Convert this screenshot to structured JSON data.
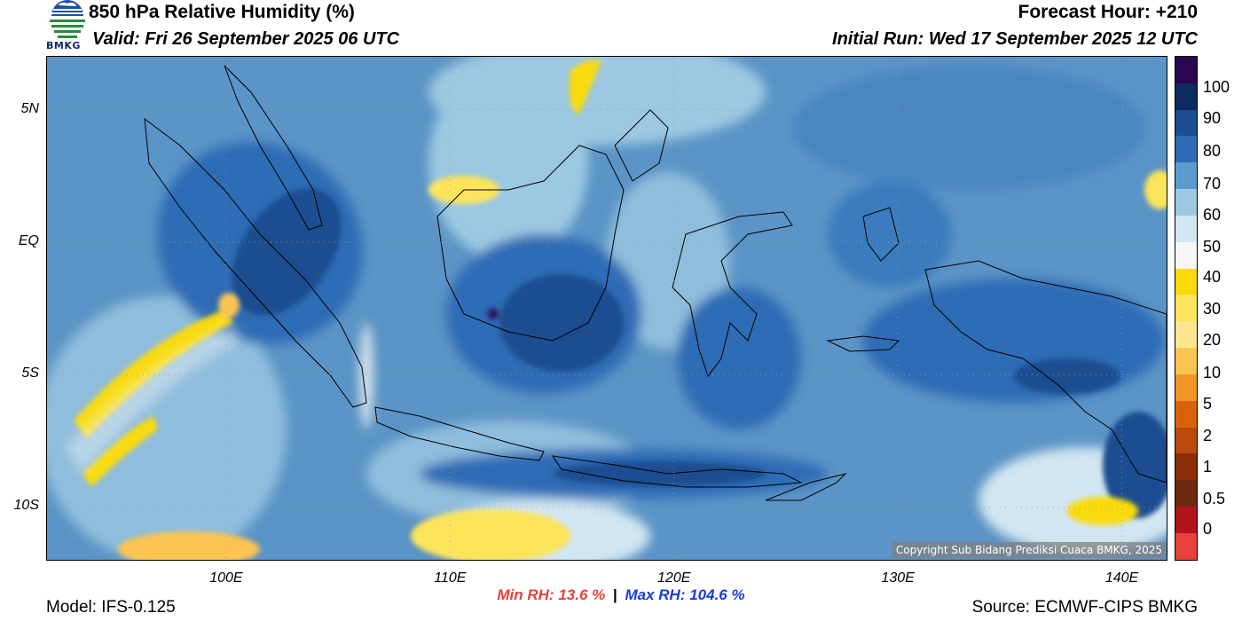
{
  "header": {
    "title": "850 hPa Relative Humidity (%)",
    "valid": "Valid: Fri 26 September 2025 06 UTC",
    "forecast_hour": "Forecast Hour: +210",
    "initial_run": "Initial Run: Wed 17 September 2025 12 UTC"
  },
  "logo": {
    "text": "BMKG",
    "icon": "bmkg-logo-icon"
  },
  "map": {
    "extent": {
      "lon_min": 92,
      "lon_max": 142,
      "lat_min": -12,
      "lat_max": 7
    },
    "lat_ticks": [
      {
        "value": 5,
        "label": "5N"
      },
      {
        "value": 0,
        "label": "EQ"
      },
      {
        "value": -5,
        "label": "5S"
      },
      {
        "value": -10,
        "label": "10S"
      }
    ],
    "lon_ticks": [
      {
        "value": 100,
        "label": "100E"
      },
      {
        "value": 110,
        "label": "110E"
      },
      {
        "value": 120,
        "label": "120E"
      },
      {
        "value": 130,
        "label": "130E"
      },
      {
        "value": 140,
        "label": "140E"
      }
    ],
    "grid": "dotted"
  },
  "colorbar": {
    "segments": [
      {
        "color": "#e8403a"
      },
      {
        "color": "#b0141c"
      },
      {
        "color": "#6e2a10"
      },
      {
        "color": "#8b2f08"
      },
      {
        "color": "#b84a0e"
      },
      {
        "color": "#d9630a"
      },
      {
        "color": "#f39427"
      },
      {
        "color": "#fbc451"
      },
      {
        "color": "#fde592"
      },
      {
        "color": "#fce45a"
      },
      {
        "color": "#f9da0a"
      },
      {
        "color": "#f6f6f6"
      },
      {
        "color": "#d2e6f1"
      },
      {
        "color": "#9cc8e1"
      },
      {
        "color": "#5b9bd0"
      },
      {
        "color": "#2d6cb5"
      },
      {
        "color": "#1b4d90"
      },
      {
        "color": "#0d2b5e"
      },
      {
        "color": "#2a0752"
      }
    ],
    "labels": [
      "100",
      "90",
      "80",
      "70",
      "60",
      "50",
      "40",
      "30",
      "20",
      "10",
      "5",
      "2",
      "1",
      "0.5",
      "0"
    ]
  },
  "copyright": "Copyright Sub Bidang Prediksi Cuaca BMKG, 2025",
  "stats": {
    "min": "Min RH:  13.6 %",
    "separator": "|",
    "max": "Max RH: 104.6 %"
  },
  "footer": {
    "model": "Model: IFS-0.125",
    "source": "Source: ECMWF-CIPS BMKG"
  }
}
